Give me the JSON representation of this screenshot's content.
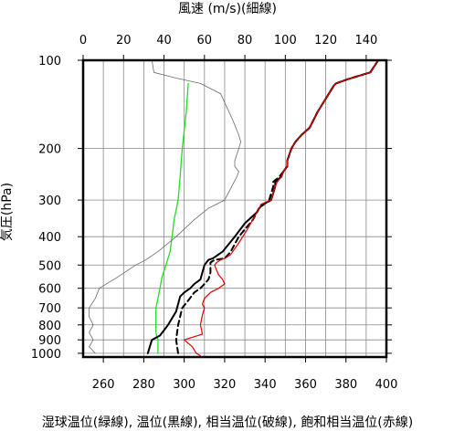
{
  "chart_data": {
    "type": "line",
    "title": "",
    "top_axis_label": "風速 (m/s)(細線)",
    "ylabel": "気圧(hPa)",
    "caption": "湿球温位(緑線), 温位(黒線), 相当温位(破線), 飽和相当温位(赤線)",
    "y_scale": "log",
    "y_inverted": true,
    "ylim": [
      1030,
      100
    ],
    "y_ticks": [
      100,
      200,
      300,
      400,
      500,
      600,
      700,
      800,
      900,
      1000
    ],
    "xlim": [
      250,
      400
    ],
    "x_ticks": [
      260,
      280,
      300,
      320,
      340,
      360,
      380,
      400
    ],
    "top_xlim": [
      0,
      150
    ],
    "top_x_ticks": [
      0,
      20,
      40,
      60,
      80,
      100,
      120,
      140
    ],
    "grid": true,
    "series": [
      {
        "key": "wet_bulb",
        "axis": "bottom",
        "color": "#22dd22",
        "width": 1.3,
        "dash": "",
        "points": [
          [
            302,
            120
          ],
          [
            301,
            150
          ],
          [
            299,
            200
          ],
          [
            298,
            250
          ],
          [
            297,
            300
          ],
          [
            295,
            350
          ],
          [
            294,
            400
          ],
          [
            293,
            450
          ],
          [
            291,
            500
          ],
          [
            289,
            550
          ],
          [
            288,
            600
          ],
          [
            287,
            650
          ],
          [
            286,
            700
          ],
          [
            286,
            750
          ],
          [
            286,
            800
          ],
          [
            286,
            850
          ],
          [
            287,
            900
          ],
          [
            287,
            950
          ],
          [
            287,
            1000
          ]
        ]
      },
      {
        "key": "potential",
        "axis": "bottom",
        "color": "#000000",
        "width": 2.0,
        "dash": "",
        "points": [
          [
            396,
            100
          ],
          [
            392,
            110
          ],
          [
            381,
            116
          ],
          [
            375,
            120
          ],
          [
            374,
            122
          ],
          [
            366,
            150
          ],
          [
            362,
            170
          ],
          [
            358,
            180
          ],
          [
            355,
            190
          ],
          [
            353,
            200
          ],
          [
            351,
            220
          ],
          [
            351,
            230
          ],
          [
            349,
            240
          ],
          [
            348,
            250
          ],
          [
            345,
            260
          ],
          [
            345,
            270
          ],
          [
            343,
            300
          ],
          [
            339,
            310
          ],
          [
            337,
            320
          ],
          [
            336,
            330
          ],
          [
            330,
            360
          ],
          [
            325,
            400
          ],
          [
            319,
            450
          ],
          [
            315,
            470
          ],
          [
            314,
            475
          ],
          [
            312,
            480
          ],
          [
            310,
            500
          ],
          [
            308,
            560
          ],
          [
            305,
            580
          ],
          [
            303,
            600
          ],
          [
            300,
            620
          ],
          [
            298,
            640
          ],
          [
            296,
            720
          ],
          [
            292,
            800
          ],
          [
            288,
            870
          ],
          [
            284,
            900
          ],
          [
            283,
            950
          ],
          [
            282,
            1000
          ]
        ]
      },
      {
        "key": "equivalent",
        "axis": "bottom",
        "color": "#000000",
        "width": 2.0,
        "dash": "6,4",
        "points": [
          [
            396,
            100
          ],
          [
            392,
            110
          ],
          [
            381,
            116
          ],
          [
            375,
            120
          ],
          [
            374,
            122
          ],
          [
            366,
            150
          ],
          [
            362,
            170
          ],
          [
            358,
            180
          ],
          [
            355,
            190
          ],
          [
            353,
            200
          ],
          [
            351,
            220
          ],
          [
            351,
            230
          ],
          [
            349,
            240
          ],
          [
            347,
            250
          ],
          [
            344,
            260
          ],
          [
            344,
            270
          ],
          [
            342,
            300
          ],
          [
            337,
            320
          ],
          [
            334,
            350
          ],
          [
            327,
            400
          ],
          [
            323,
            450
          ],
          [
            320,
            475
          ],
          [
            315,
            480
          ],
          [
            313,
            490
          ],
          [
            313,
            530
          ],
          [
            312,
            560
          ],
          [
            310,
            580
          ],
          [
            308,
            600
          ],
          [
            305,
            620
          ],
          [
            302,
            660
          ],
          [
            299,
            700
          ],
          [
            297,
            800
          ],
          [
            296,
            900
          ],
          [
            297,
            1000
          ]
        ]
      },
      {
        "key": "saturated_equivalent",
        "axis": "bottom",
        "color": "#e00000",
        "width": 1.2,
        "dash": "",
        "points": [
          [
            396,
            100
          ],
          [
            392,
            110
          ],
          [
            381,
            116
          ],
          [
            375,
            120
          ],
          [
            374,
            122
          ],
          [
            366,
            150
          ],
          [
            362,
            170
          ],
          [
            358,
            180
          ],
          [
            355,
            190
          ],
          [
            353,
            200
          ],
          [
            351,
            220
          ],
          [
            351,
            230
          ],
          [
            349,
            240
          ],
          [
            348,
            250
          ],
          [
            346,
            260
          ],
          [
            345,
            270
          ],
          [
            343,
            300
          ],
          [
            338,
            310
          ],
          [
            337,
            320
          ],
          [
            335,
            340
          ],
          [
            331,
            380
          ],
          [
            327,
            420
          ],
          [
            323,
            460
          ],
          [
            320,
            475
          ],
          [
            318,
            480
          ],
          [
            316,
            490
          ],
          [
            315,
            500
          ],
          [
            316,
            520
          ],
          [
            317,
            540
          ],
          [
            319,
            560
          ],
          [
            320,
            580
          ],
          [
            317,
            600
          ],
          [
            313,
            620
          ],
          [
            310,
            650
          ],
          [
            309,
            680
          ],
          [
            310,
            700
          ],
          [
            309,
            740
          ],
          [
            308,
            800
          ],
          [
            309,
            860
          ],
          [
            300,
            900
          ],
          [
            304,
            950
          ],
          [
            306,
            1000
          ],
          [
            308,
            1020
          ]
        ]
      },
      {
        "key": "wind_speed",
        "axis": "top",
        "color": "#6a6a6a",
        "width": 0.8,
        "dash": "",
        "points": [
          [
            34,
            100
          ],
          [
            35,
            110
          ],
          [
            46,
            115
          ],
          [
            58,
            120
          ],
          [
            68,
            130
          ],
          [
            74,
            160
          ],
          [
            77,
            180
          ],
          [
            78,
            190
          ],
          [
            77,
            200
          ],
          [
            76,
            210
          ],
          [
            75,
            220
          ],
          [
            75,
            230
          ],
          [
            77,
            240
          ],
          [
            76,
            250
          ],
          [
            70,
            300
          ],
          [
            62,
            320
          ],
          [
            55,
            350
          ],
          [
            46,
            400
          ],
          [
            37,
            450
          ],
          [
            31,
            480
          ],
          [
            26,
            500
          ],
          [
            17,
            550
          ],
          [
            8,
            600
          ],
          [
            6,
            650
          ],
          [
            3,
            700
          ],
          [
            3,
            750
          ],
          [
            5,
            800
          ],
          [
            3,
            850
          ],
          [
            5,
            900
          ],
          [
            3,
            950
          ],
          [
            6,
            1000
          ]
        ]
      }
    ]
  }
}
